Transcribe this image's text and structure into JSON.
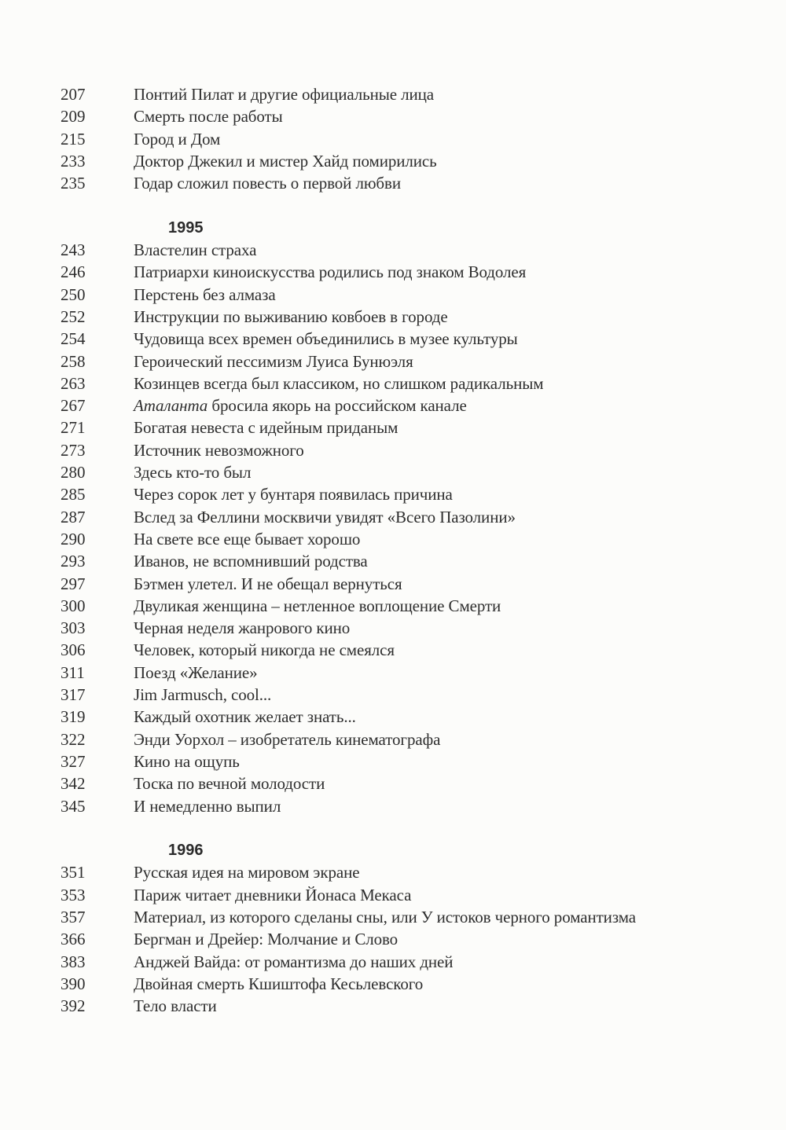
{
  "sections": [
    {
      "year": "",
      "entries": [
        {
          "page": "207",
          "title": "Понтий Пилат и другие официальные лица"
        },
        {
          "page": "209",
          "title": "Смерть после работы"
        },
        {
          "page": "215",
          "title": "Город и Дом"
        },
        {
          "page": "233",
          "title": "Доктор Джекил и мистер Хайд помирились"
        },
        {
          "page": "235",
          "title": "Годар сложил повесть о первой любви"
        }
      ]
    },
    {
      "year": "1995",
      "entries": [
        {
          "page": "243",
          "title": "Властелин страха"
        },
        {
          "page": "246",
          "title": "Патриархи киноискусства родились под знаком Водолея"
        },
        {
          "page": "250",
          "title": "Перстень без алмаза"
        },
        {
          "page": "252",
          "title": "Инструкции по выживанию ковбоев в городе"
        },
        {
          "page": "254",
          "title": "Чудовища всех времен объединились в музее культуры"
        },
        {
          "page": "258",
          "title": "Героический пессимизм Луиса Бунюэля"
        },
        {
          "page": "263",
          "title": "Козинцев всегда был классиком, но слишком радикальным"
        },
        {
          "page": "267",
          "italic": "Аталанта",
          "title": " бросила якорь на российском канале"
        },
        {
          "page": "271",
          "title": "Богатая невеста с идейным приданым"
        },
        {
          "page": "273",
          "title": "Источник невозможного"
        },
        {
          "page": "280",
          "title": "Здесь кто-то был"
        },
        {
          "page": "285",
          "title": "Через сорок лет у бунтаря появилась причина"
        },
        {
          "page": "287",
          "title": "Вслед за Феллини москвичи увидят «Всего Пазолини»"
        },
        {
          "page": "290",
          "title": "На свете все еще бывает хорошо"
        },
        {
          "page": "293",
          "title": "Иванов, не вспомнивший родства"
        },
        {
          "page": "297",
          "title": "Бэтмен улетел. И не обещал вернуться"
        },
        {
          "page": "300",
          "title": "Двуликая женщина – нетленное воплощение Смерти"
        },
        {
          "page": "303",
          "title": "Черная неделя жанрового кино"
        },
        {
          "page": "306",
          "title": "Человек, который никогда не смеялся"
        },
        {
          "page": "311",
          "title": "Поезд «Желание»"
        },
        {
          "page": "317",
          "title": "Jim Jarmusch, cool..."
        },
        {
          "page": "319",
          "title": "Каждый охотник желает знать..."
        },
        {
          "page": "322",
          "title": "Энди Уорхол – изобретатель кинематографа"
        },
        {
          "page": "327",
          "title": "Кино на ощупь"
        },
        {
          "page": "342",
          "title": "Тоска по вечной молодости"
        },
        {
          "page": "345",
          "title": "И немедленно выпил"
        }
      ]
    },
    {
      "year": "1996",
      "entries": [
        {
          "page": "351",
          "title": "Русская идея на мировом экране"
        },
        {
          "page": "353",
          "title": "Париж читает дневники Йонаса Мекаса"
        },
        {
          "page": "357",
          "title": "Материал, из которого сделаны сны, или У истоков черного романтизма"
        },
        {
          "page": "366",
          "title": "Бергман и Дрейер: Молчание и Слово"
        },
        {
          "page": "383",
          "title": "Анджей Вайда: от романтизма до наших дней"
        },
        {
          "page": "390",
          "title": "Двойная смерть Кшиштофа Кесьлевского"
        },
        {
          "page": "392",
          "title": "Тело власти"
        }
      ]
    }
  ]
}
